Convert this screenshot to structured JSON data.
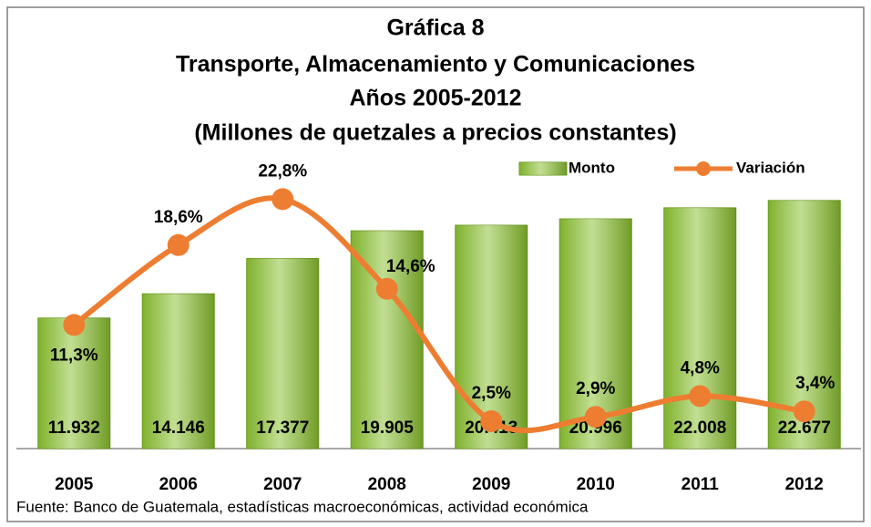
{
  "chart_data": {
    "type": "bar",
    "title": "Gráfica 8",
    "subtitle": [
      "Transporte, Almacenamiento y Comunicaciones",
      "Años 2005-2012",
      "(Millones de quetzales a precios constantes)"
    ],
    "categories": [
      "2005",
      "2006",
      "2007",
      "2008",
      "2009",
      "2010",
      "2011",
      "2012"
    ],
    "series": [
      {
        "name": "Monto",
        "type": "bar",
        "color": "#8fc43a",
        "values": [
          11932,
          14146,
          17377,
          19905,
          20413,
          20996,
          22008,
          22677
        ],
        "value_labels": [
          "11.932",
          "14.146",
          "17.377",
          "19.905",
          "20.413",
          "20.996",
          "22.008",
          "22.677"
        ]
      },
      {
        "name": "Variación",
        "type": "line",
        "axis": "y2",
        "color": "#ed7d31",
        "values": [
          11.3,
          18.6,
          22.8,
          14.6,
          2.5,
          2.9,
          4.8,
          3.4
        ],
        "value_labels": [
          "11,3%",
          "18,6%",
          "22,8%",
          "14,6%",
          "2,5%",
          "2,9%",
          "4,8%",
          "3,4%"
        ]
      }
    ],
    "ylim": [
      0,
      25000
    ],
    "y2lim": [
      0,
      25
    ],
    "legend": "top-right",
    "source": "Fuente: Banco de Guatemala, estadísticas macroeconómicas, actividad económica"
  }
}
